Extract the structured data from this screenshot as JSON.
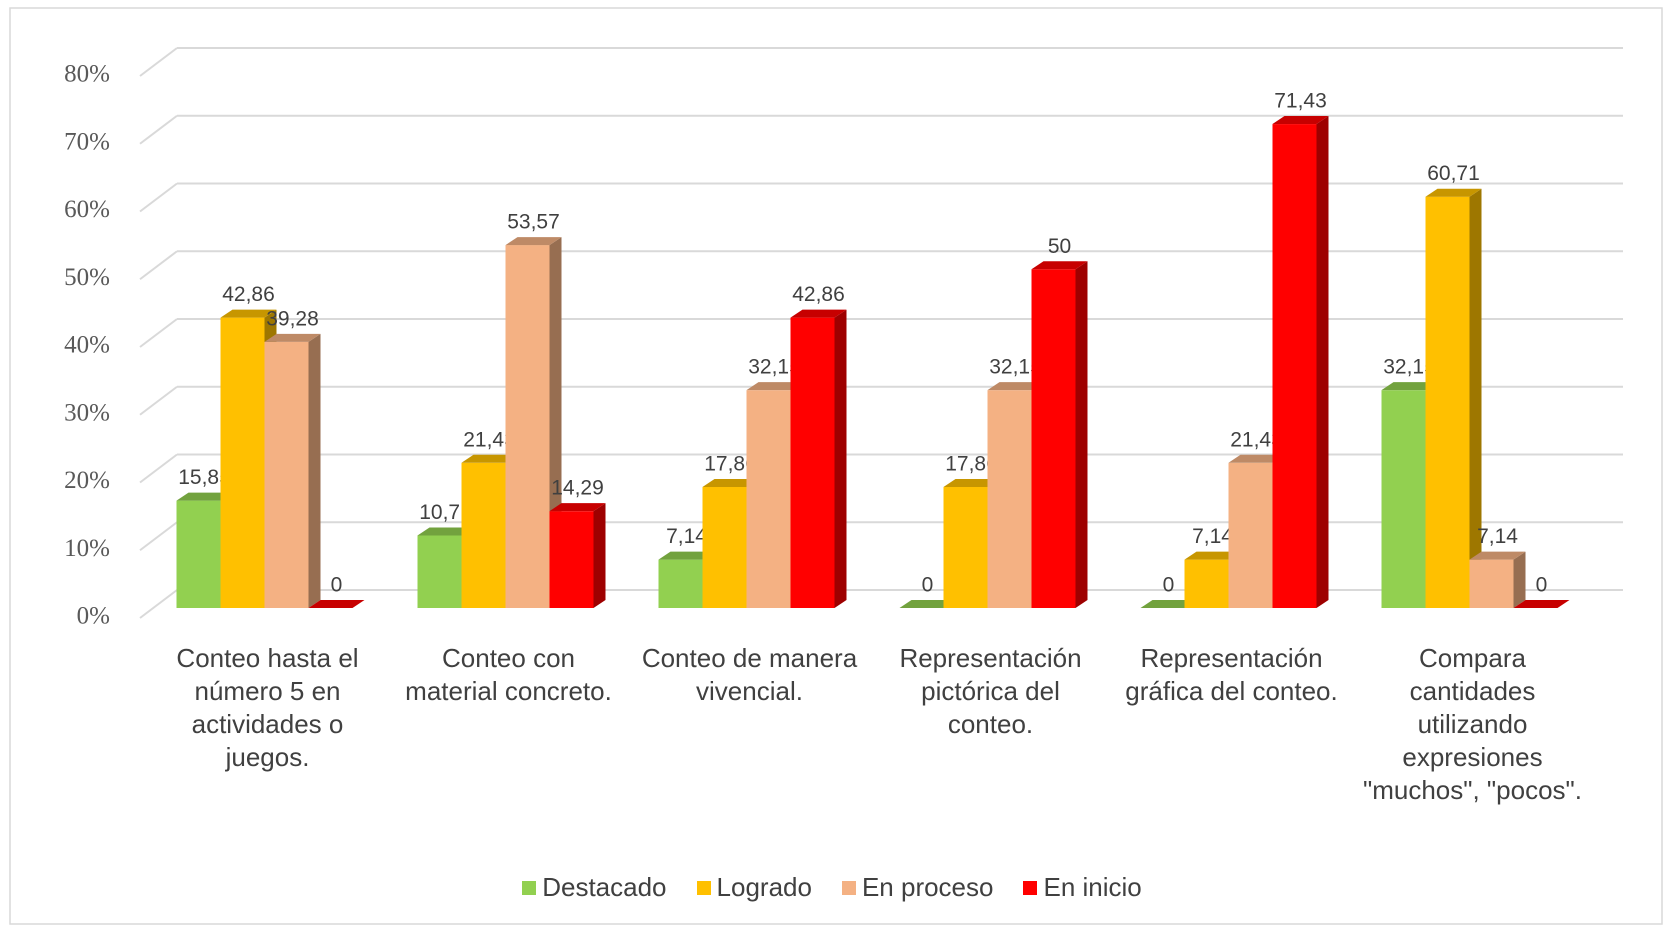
{
  "chart_data": {
    "type": "bar3d",
    "categories": [
      "Conteo hasta el número 5 en actividades o juegos.",
      "Conteo con material concreto.",
      "Conteo de manera vivencial.",
      "Representación pictórica del conteo.",
      "Representación gráfica del conteo.",
      "Compara cantidades utilizando expresiones \"muchos\", \"pocos\"."
    ],
    "series": [
      {
        "name": "Destacado",
        "color": "#92d050",
        "values": [
          15.85,
          10.71,
          7.14,
          0,
          0,
          32.15
        ],
        "value_labels": [
          "15,85",
          "10,71",
          "7,14",
          "0",
          "0",
          "32,15"
        ]
      },
      {
        "name": "Logrado",
        "color": "#ffc000",
        "values": [
          42.86,
          21.43,
          17.86,
          17.86,
          7.14,
          60.71
        ],
        "value_labels": [
          "42,86",
          "21,43",
          "17,86",
          "17,86",
          "7,14",
          "60,71"
        ]
      },
      {
        "name": "En proceso",
        "color": "#f4b183",
        "values": [
          39.28,
          53.57,
          32.15,
          32.15,
          21.43,
          7.14
        ],
        "value_labels": [
          "39,28",
          "53,57",
          "32,15",
          "32,15",
          "21,43",
          "7,14"
        ]
      },
      {
        "name": "En inicio",
        "color": "#ff0000",
        "values": [
          0,
          14.29,
          42.86,
          50,
          71.43,
          0
        ],
        "value_labels": [
          "0",
          "14,29",
          "42,86",
          "50",
          "71,43",
          "0"
        ]
      }
    ],
    "ylim": [
      0,
      80
    ],
    "yticks": [
      {
        "value": 0,
        "label": "0%"
      },
      {
        "value": 10,
        "label": "10%"
      },
      {
        "value": 20,
        "label": "20%"
      },
      {
        "value": 30,
        "label": "30%"
      },
      {
        "value": 40,
        "label": "40%"
      },
      {
        "value": 50,
        "label": "50%"
      },
      {
        "value": 60,
        "label": "60%"
      },
      {
        "value": 70,
        "label": "70%"
      },
      {
        "value": 80,
        "label": "80%"
      }
    ],
    "grid": true,
    "legend": "bottom"
  }
}
